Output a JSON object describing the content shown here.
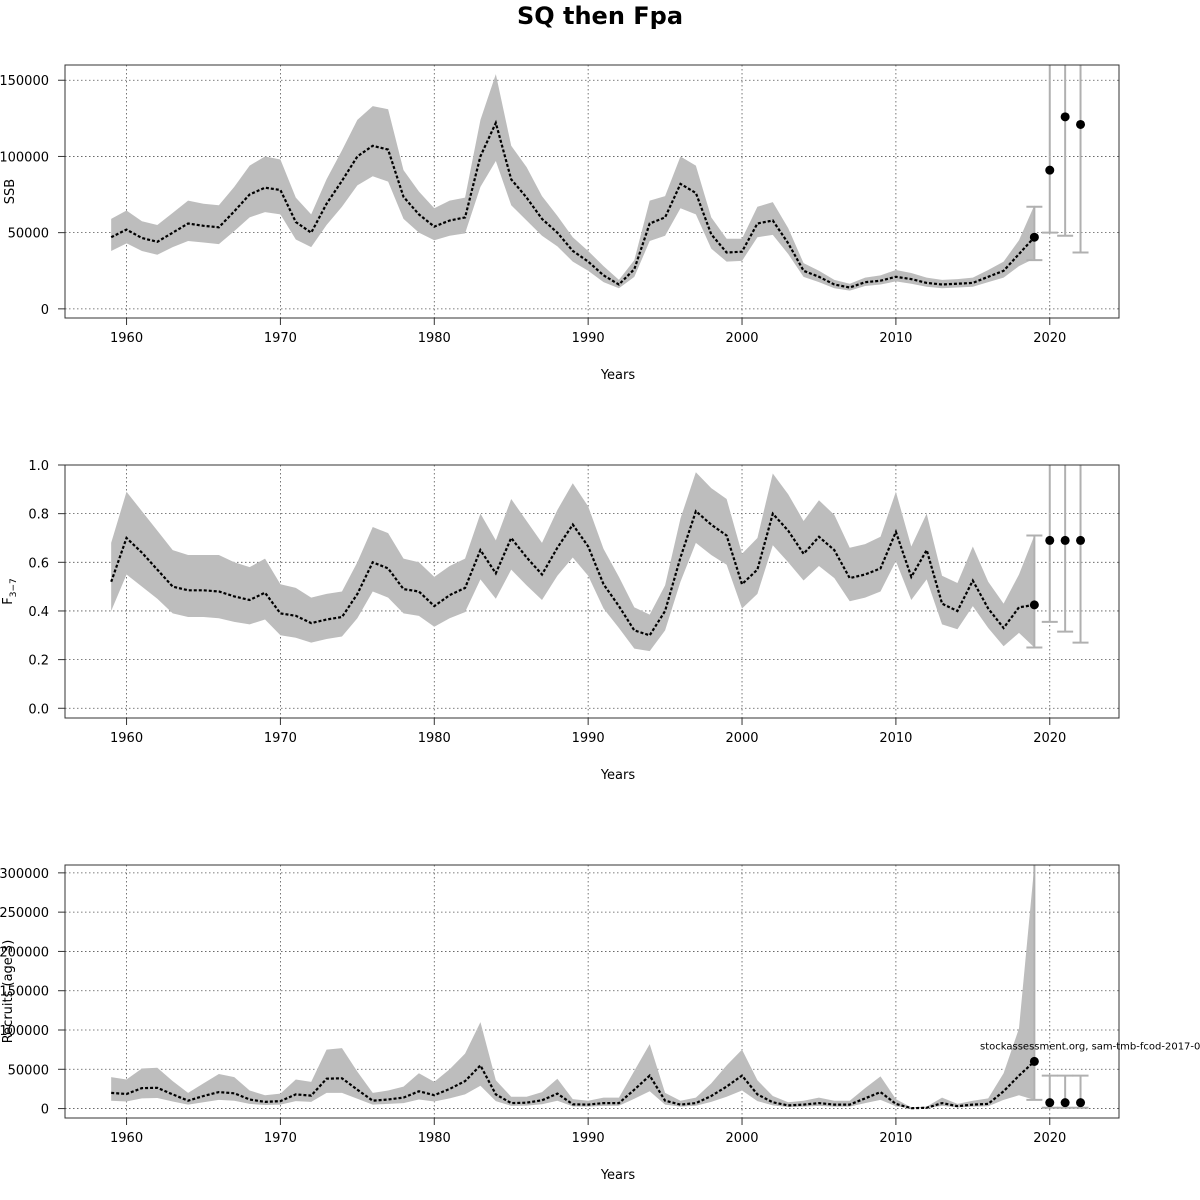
{
  "title": "SQ then Fpa",
  "footnote": "stockassessment.org, sam-tmb-fcod-2017-0",
  "chart_data": [
    {
      "type": "line",
      "ylabel": "SSB",
      "xlabel": "Years",
      "xlim": [
        1956,
        2024.5
      ],
      "ylim": [
        -6000,
        160000
      ],
      "xticks": [
        1960,
        1970,
        1980,
        1990,
        2000,
        2010,
        2020
      ],
      "yticks": [
        0,
        50000,
        100000,
        150000
      ],
      "ytick_labels": [
        "0",
        "50000",
        "100000",
        "150000"
      ],
      "grid": true,
      "x": [
        1959,
        1960,
        1961,
        1962,
        1963,
        1964,
        1965,
        1966,
        1967,
        1968,
        1969,
        1970,
        1971,
        1972,
        1973,
        1974,
        1975,
        1976,
        1977,
        1978,
        1979,
        1980,
        1981,
        1982,
        1983,
        1984,
        1985,
        1986,
        1987,
        1988,
        1989,
        1990,
        1991,
        1992,
        1993,
        1994,
        1995,
        1996,
        1997,
        1998,
        1999,
        2000,
        2001,
        2002,
        2003,
        2004,
        2005,
        2006,
        2007,
        2008,
        2009,
        2010,
        2011,
        2012,
        2013,
        2014,
        2015,
        2016,
        2017,
        2018,
        2019
      ],
      "estimate": [
        47000,
        52000,
        46500,
        44000,
        50000,
        56000,
        54500,
        53500,
        64000,
        75000,
        79500,
        78000,
        57000,
        50000,
        69000,
        84000,
        100000,
        107000,
        104500,
        73500,
        62000,
        54000,
        58000,
        60000,
        100000,
        122000,
        85000,
        73000,
        59000,
        50000,
        38000,
        31000,
        22000,
        16000,
        26000,
        56000,
        60000,
        82000,
        76000,
        49000,
        37000,
        37500,
        56000,
        58000,
        43000,
        25000,
        21000,
        16000,
        14000,
        17500,
        18500,
        21000,
        19500,
        17000,
        16000,
        16500,
        17000,
        21000,
        25000,
        36000,
        47000
      ],
      "lower": [
        38000,
        43000,
        38000,
        35500,
        40500,
        44500,
        43500,
        42500,
        51000,
        60000,
        63500,
        62000,
        45500,
        40500,
        55000,
        67000,
        81000,
        87000,
        83500,
        59000,
        50000,
        45000,
        48000,
        49500,
        80000,
        97000,
        68000,
        58000,
        48000,
        41000,
        31000,
        25000,
        17500,
        13500,
        21000,
        44500,
        48000,
        66000,
        62000,
        39500,
        31000,
        31500,
        47000,
        48500,
        36000,
        21000,
        17500,
        13500,
        12000,
        15000,
        16000,
        18000,
        16500,
        14500,
        13500,
        14000,
        14500,
        17500,
        20500,
        28000,
        33000
      ],
      "upper": [
        59000,
        64500,
        57500,
        55000,
        63000,
        71000,
        69000,
        68000,
        80000,
        94000,
        100000,
        98000,
        73000,
        62000,
        85000,
        104000,
        124000,
        133000,
        131000,
        91000,
        77000,
        66000,
        71000,
        73000,
        124000,
        154000,
        107000,
        93000,
        74000,
        61000,
        47000,
        38000,
        28000,
        19000,
        32000,
        71000,
        74000,
        100000,
        94000,
        60000,
        46000,
        46000,
        67000,
        70000,
        53000,
        30000,
        25000,
        19000,
        16500,
        20500,
        22000,
        25500,
        23500,
        20500,
        19000,
        19500,
        20500,
        25500,
        31000,
        45000,
        68000
      ],
      "forecast": [
        {
          "x": 2019,
          "y": 47000,
          "lo": 32000,
          "hi": 67000
        },
        {
          "x": 2020,
          "y": 91000,
          "lo": 50000,
          "hi": 160000
        },
        {
          "x": 2021,
          "y": 126000,
          "lo": 48000,
          "hi": 160000
        },
        {
          "x": 2022,
          "y": 121000,
          "lo": 37000,
          "hi": 160000
        }
      ]
    },
    {
      "type": "line",
      "ylabel": "F3-7",
      "xlabel": "Years",
      "xlim": [
        1956,
        2024.5
      ],
      "ylim": [
        -0.04,
        1.0
      ],
      "xticks": [
        1960,
        1970,
        1980,
        1990,
        2000,
        2010,
        2020
      ],
      "yticks": [
        0,
        0.2,
        0.4,
        0.6,
        0.8,
        1.0
      ],
      "ytick_labels": [
        "0.0",
        "0.2",
        "0.4",
        "0.6",
        "0.8",
        "1.0"
      ],
      "grid": true,
      "x": [
        1959,
        1960,
        1961,
        1962,
        1963,
        1964,
        1965,
        1966,
        1967,
        1968,
        1969,
        1970,
        1971,
        1972,
        1973,
        1974,
        1975,
        1976,
        1977,
        1978,
        1979,
        1980,
        1981,
        1982,
        1983,
        1984,
        1985,
        1986,
        1987,
        1988,
        1989,
        1990,
        1991,
        1992,
        1993,
        1994,
        1995,
        1996,
        1997,
        1998,
        1999,
        2000,
        2001,
        2002,
        2003,
        2004,
        2005,
        2006,
        2007,
        2008,
        2009,
        2010,
        2011,
        2012,
        2013,
        2014,
        2015,
        2016,
        2017,
        2018,
        2019
      ],
      "estimate": [
        0.52,
        0.7,
        0.64,
        0.57,
        0.5,
        0.485,
        0.485,
        0.48,
        0.46,
        0.445,
        0.475,
        0.39,
        0.38,
        0.35,
        0.365,
        0.375,
        0.47,
        0.6,
        0.575,
        0.49,
        0.48,
        0.42,
        0.465,
        0.495,
        0.65,
        0.555,
        0.7,
        0.62,
        0.55,
        0.66,
        0.755,
        0.665,
        0.51,
        0.42,
        0.32,
        0.3,
        0.4,
        0.62,
        0.81,
        0.755,
        0.71,
        0.51,
        0.57,
        0.8,
        0.73,
        0.635,
        0.705,
        0.65,
        0.535,
        0.55,
        0.575,
        0.725,
        0.54,
        0.65,
        0.43,
        0.4,
        0.525,
        0.41,
        0.33,
        0.415,
        0.425
      ],
      "lower": [
        0.4,
        0.55,
        0.5,
        0.45,
        0.39,
        0.375,
        0.375,
        0.37,
        0.355,
        0.345,
        0.365,
        0.3,
        0.29,
        0.27,
        0.285,
        0.295,
        0.37,
        0.48,
        0.455,
        0.39,
        0.38,
        0.335,
        0.37,
        0.395,
        0.53,
        0.45,
        0.57,
        0.505,
        0.445,
        0.545,
        0.62,
        0.545,
        0.41,
        0.33,
        0.245,
        0.235,
        0.32,
        0.52,
        0.68,
        0.63,
        0.59,
        0.41,
        0.47,
        0.67,
        0.6,
        0.525,
        0.585,
        0.535,
        0.44,
        0.455,
        0.48,
        0.605,
        0.445,
        0.53,
        0.345,
        0.325,
        0.42,
        0.33,
        0.255,
        0.31,
        0.25
      ],
      "upper": [
        0.68,
        0.89,
        0.81,
        0.73,
        0.65,
        0.63,
        0.63,
        0.63,
        0.6,
        0.58,
        0.615,
        0.51,
        0.495,
        0.455,
        0.47,
        0.48,
        0.6,
        0.745,
        0.72,
        0.615,
        0.6,
        0.54,
        0.585,
        0.615,
        0.8,
        0.69,
        0.86,
        0.77,
        0.68,
        0.815,
        0.925,
        0.83,
        0.655,
        0.54,
        0.415,
        0.385,
        0.505,
        0.78,
        0.97,
        0.905,
        0.86,
        0.635,
        0.7,
        0.965,
        0.88,
        0.77,
        0.855,
        0.795,
        0.66,
        0.675,
        0.705,
        0.89,
        0.665,
        0.8,
        0.545,
        0.515,
        0.665,
        0.52,
        0.43,
        0.55,
        0.71
      ],
      "forecast": [
        {
          "x": 2019,
          "y": 0.425,
          "lo": 0.25,
          "hi": 0.71
        },
        {
          "x": 2020,
          "y": 0.69,
          "lo": 0.355,
          "hi": 1.0
        },
        {
          "x": 2021,
          "y": 0.69,
          "lo": 0.315,
          "hi": 1.0
        },
        {
          "x": 2022,
          "y": 0.69,
          "lo": 0.27,
          "hi": 1.0
        }
      ]
    },
    {
      "type": "line",
      "ylabel": "Recruits (age 3)",
      "xlabel": "Years",
      "xlim": [
        1956,
        2024.5
      ],
      "ylim": [
        -12000,
        310000
      ],
      "xticks": [
        1960,
        1970,
        1980,
        1990,
        2000,
        2010,
        2020
      ],
      "yticks": [
        0,
        50000,
        100000,
        150000,
        200000,
        250000,
        300000
      ],
      "ytick_labels": [
        "0",
        "50000",
        "100000",
        "150000",
        "200000",
        "250000",
        "300000"
      ],
      "grid": true,
      "x": [
        1959,
        1960,
        1961,
        1962,
        1963,
        1964,
        1965,
        1966,
        1967,
        1968,
        1969,
        1970,
        1971,
        1972,
        1973,
        1974,
        1975,
        1976,
        1977,
        1978,
        1979,
        1980,
        1981,
        1982,
        1983,
        1984,
        1985,
        1986,
        1987,
        1988,
        1989,
        1990,
        1991,
        1992,
        1993,
        1994,
        1995,
        1996,
        1997,
        1998,
        1999,
        2000,
        2001,
        2002,
        2003,
        2004,
        2005,
        2006,
        2007,
        2008,
        2009,
        2010,
        2011,
        2012,
        2013,
        2014,
        2015,
        2016,
        2017,
        2018,
        2019
      ],
      "estimate": [
        20000,
        18500,
        26000,
        26500,
        18000,
        10000,
        16000,
        21000,
        19500,
        11500,
        8500,
        9500,
        18000,
        16500,
        38000,
        38500,
        24000,
        10000,
        11500,
        14000,
        22000,
        17000,
        25000,
        35000,
        55000,
        18000,
        7000,
        7500,
        10500,
        19000,
        5500,
        5000,
        7000,
        7000,
        24000,
        42000,
        10000,
        5000,
        7000,
        16000,
        28000,
        42000,
        18000,
        8000,
        4000,
        5000,
        7000,
        5000,
        5000,
        13000,
        21000,
        6000,
        500,
        1000,
        7000,
        3000,
        5000,
        6000,
        22000,
        42000,
        60000
      ],
      "lower": [
        10000,
        9000,
        13000,
        13500,
        9000,
        5000,
        8000,
        11000,
        10000,
        6000,
        4500,
        5000,
        9500,
        8500,
        20000,
        20000,
        12500,
        5000,
        6000,
        7000,
        11500,
        9000,
        13000,
        18000,
        29000,
        9500,
        3500,
        3800,
        5500,
        10000,
        2800,
        2500,
        3500,
        3600,
        12500,
        22000,
        5000,
        2500,
        3600,
        8500,
        15000,
        23000,
        9500,
        4000,
        2000,
        2500,
        3500,
        2500,
        2500,
        7000,
        11000,
        3000,
        200,
        500,
        3500,
        1500,
        2500,
        3000,
        11000,
        17000,
        11000
      ],
      "upper": [
        40000,
        37000,
        51000,
        52000,
        35000,
        20000,
        32000,
        44000,
        40000,
        23000,
        17000,
        19000,
        37000,
        34000,
        75000,
        77000,
        47000,
        20000,
        23000,
        28000,
        45000,
        34000,
        50000,
        70000,
        110000,
        36000,
        15000,
        15000,
        21000,
        38000,
        12000,
        10000,
        14000,
        14000,
        48000,
        82000,
        20000,
        10000,
        14000,
        32000,
        55000,
        75000,
        36000,
        16000,
        8000,
        10000,
        14000,
        10000,
        10000,
        26000,
        41000,
        12000,
        1500,
        2500,
        14000,
        6000,
        10000,
        13000,
        45000,
        102000,
        310000
      ],
      "forecast": [
        {
          "x": 2019,
          "y": 60000,
          "lo": 11000,
          "hi": 310000
        },
        {
          "x": 2020,
          "y": 7500,
          "lo": 1000,
          "hi": 42000
        },
        {
          "x": 2021,
          "y": 7500,
          "lo": 1000,
          "hi": 42000
        },
        {
          "x": 2022,
          "y": 7500,
          "lo": 1000,
          "hi": 42000
        }
      ]
    }
  ]
}
